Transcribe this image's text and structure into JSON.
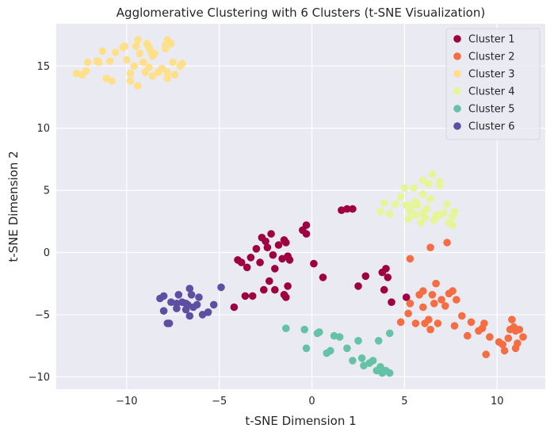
{
  "chart_data": {
    "type": "scatter",
    "title": "Agglomerative Clustering with 6 Clusters (t-SNE Visualization)",
    "xlabel": "t-SNE Dimension 1",
    "ylabel": "t-SNE Dimension 2",
    "xlim": [
      -13.8,
      12.6
    ],
    "ylim": [
      -11.0,
      18.4
    ],
    "x_ticks": [
      -10,
      -5,
      0,
      5,
      10
    ],
    "y_ticks": [
      -10,
      -5,
      0,
      5,
      10,
      15
    ],
    "x_tick_labels": [
      "−10",
      "−5",
      "0",
      "5",
      "10"
    ],
    "y_tick_labels": [
      "−10",
      "−5",
      "0",
      "5",
      "10",
      "15"
    ],
    "grid": true,
    "legend_position": "top-right",
    "background": "#eaeaf2",
    "series": [
      {
        "name": "Cluster 1",
        "color": "#9e0142",
        "points": [
          [
            -4.0,
            -0.6
          ],
          [
            -3.8,
            -0.8
          ],
          [
            -3.5,
            -1.2
          ],
          [
            -3.3,
            -0.4
          ],
          [
            -3.0,
            0.3
          ],
          [
            -2.8,
            -0.8
          ],
          [
            -2.7,
            1.2
          ],
          [
            -2.5,
            0.9
          ],
          [
            -2.4,
            0.4
          ],
          [
            -2.2,
            1.5
          ],
          [
            -2.1,
            -0.2
          ],
          [
            -2.0,
            -1.3
          ],
          [
            -1.8,
            0.6
          ],
          [
            -1.6,
            -0.5
          ],
          [
            -1.5,
            1.0
          ],
          [
            -1.3,
            -0.3
          ],
          [
            -1.4,
            0.8
          ],
          [
            -1.2,
            -0.6
          ],
          [
            -3.6,
            -3.5
          ],
          [
            -3.2,
            -3.5
          ],
          [
            -2.6,
            -3.0
          ],
          [
            -2.3,
            -2.3
          ],
          [
            -2.0,
            -3.0
          ],
          [
            -1.5,
            -3.4
          ],
          [
            -1.3,
            -2.7
          ],
          [
            -1.4,
            -3.6
          ],
          [
            -4.2,
            -4.4
          ],
          [
            -0.5,
            1.8
          ],
          [
            -0.3,
            2.2
          ],
          [
            -0.3,
            1.5
          ],
          [
            0.1,
            -0.9
          ],
          [
            0.6,
            -2.0
          ],
          [
            1.6,
            3.4
          ],
          [
            1.9,
            3.5
          ],
          [
            2.2,
            3.5
          ],
          [
            2.5,
            -2.7
          ],
          [
            2.9,
            -1.9
          ],
          [
            3.8,
            -1.6
          ],
          [
            4.0,
            -1.3
          ],
          [
            3.9,
            -3.0
          ],
          [
            4.3,
            -4.0
          ],
          [
            4.1,
            -2.0
          ],
          [
            5.1,
            -3.6
          ]
        ]
      },
      {
        "name": "Cluster 2",
        "color": "#f46d43",
        "points": [
          [
            5.3,
            -0.5
          ],
          [
            6.4,
            0.4
          ],
          [
            7.3,
            0.8
          ],
          [
            4.8,
            -5.6
          ],
          [
            5.2,
            -4.9
          ],
          [
            5.3,
            -4.1
          ],
          [
            5.6,
            -5.7
          ],
          [
            5.8,
            -3.4
          ],
          [
            6.0,
            -4.4
          ],
          [
            6.0,
            -3.1
          ],
          [
            6.1,
            -5.7
          ],
          [
            6.3,
            -5.4
          ],
          [
            6.4,
            -6.2
          ],
          [
            6.5,
            -3.4
          ],
          [
            6.6,
            -4.1
          ],
          [
            6.7,
            -2.5
          ],
          [
            6.8,
            -5.7
          ],
          [
            7.0,
            -3.8
          ],
          [
            7.2,
            -4.3
          ],
          [
            7.4,
            -3.3
          ],
          [
            7.6,
            -3.1
          ],
          [
            7.7,
            -5.9
          ],
          [
            7.8,
            -3.8
          ],
          [
            8.1,
            -5.1
          ],
          [
            8.4,
            -6.7
          ],
          [
            8.6,
            -5.6
          ],
          [
            9.0,
            -6.3
          ],
          [
            9.2,
            -6.1
          ],
          [
            9.3,
            -5.7
          ],
          [
            9.4,
            -8.2
          ],
          [
            9.6,
            -6.8
          ],
          [
            10.1,
            -7.2
          ],
          [
            10.3,
            -7.4
          ],
          [
            10.4,
            -7.9
          ],
          [
            10.6,
            -6.9
          ],
          [
            10.7,
            -6.2
          ],
          [
            10.8,
            -5.4
          ],
          [
            10.9,
            -6.0
          ],
          [
            11.0,
            -7.7
          ],
          [
            11.1,
            -7.3
          ],
          [
            11.2,
            -6.2
          ],
          [
            11.4,
            -6.8
          ],
          [
            11.0,
            -6.3
          ]
        ]
      },
      {
        "name": "Cluster 3",
        "color": "#fee08b",
        "points": [
          [
            -12.7,
            14.4
          ],
          [
            -12.4,
            14.3
          ],
          [
            -12.2,
            14.6
          ],
          [
            -12.1,
            15.3
          ],
          [
            -11.5,
            15.3
          ],
          [
            -11.3,
            16.2
          ],
          [
            -11.1,
            14.0
          ],
          [
            -10.9,
            15.4
          ],
          [
            -10.8,
            13.8
          ],
          [
            -10.6,
            16.1
          ],
          [
            -10.2,
            16.5
          ],
          [
            -10.1,
            16.6
          ],
          [
            -10.0,
            15.5
          ],
          [
            -9.8,
            14.4
          ],
          [
            -9.8,
            13.8
          ],
          [
            -9.6,
            15.0
          ],
          [
            -9.5,
            16.6
          ],
          [
            -9.4,
            17.1
          ],
          [
            -9.3,
            16.0
          ],
          [
            -9.4,
            13.4
          ],
          [
            -9.1,
            15.3
          ],
          [
            -9.0,
            14.5
          ],
          [
            -8.9,
            16.8
          ],
          [
            -8.8,
            16.5
          ],
          [
            -8.7,
            16.2
          ],
          [
            -8.6,
            15.8
          ],
          [
            -8.6,
            14.2
          ],
          [
            -8.5,
            16.0
          ],
          [
            -8.3,
            14.5
          ],
          [
            -8.1,
            14.8
          ],
          [
            -7.8,
            14.0
          ],
          [
            -7.9,
            16.4
          ],
          [
            -7.8,
            17.1
          ],
          [
            -7.6,
            16.8
          ],
          [
            -7.5,
            15.3
          ],
          [
            -7.4,
            14.3
          ],
          [
            -7.1,
            15.0
          ],
          [
            -7.0,
            15.2
          ],
          [
            -7.8,
            14.5
          ],
          [
            -8.8,
            14.9
          ],
          [
            -11.6,
            15.4
          ],
          [
            -7.9,
            16.7
          ]
        ]
      },
      {
        "name": "Cluster 4",
        "color": "#e6f598",
        "points": [
          [
            3.7,
            3.3
          ],
          [
            3.9,
            4.0
          ],
          [
            4.2,
            3.1
          ],
          [
            4.5,
            3.9
          ],
          [
            4.8,
            4.5
          ],
          [
            5.0,
            5.2
          ],
          [
            5.1,
            3.8
          ],
          [
            5.2,
            2.7
          ],
          [
            5.3,
            3.3
          ],
          [
            5.4,
            3.8
          ],
          [
            5.5,
            5.2
          ],
          [
            5.6,
            3.0
          ],
          [
            5.7,
            3.8
          ],
          [
            5.9,
            2.4
          ],
          [
            6.0,
            3.2
          ],
          [
            6.0,
            5.8
          ],
          [
            6.1,
            2.8
          ],
          [
            6.2,
            3.5
          ],
          [
            6.4,
            4.3
          ],
          [
            6.5,
            6.3
          ],
          [
            6.6,
            2.6
          ],
          [
            6.7,
            3.0
          ],
          [
            6.9,
            5.4
          ],
          [
            6.9,
            5.7
          ],
          [
            7.1,
            3.2
          ],
          [
            7.3,
            3.9
          ],
          [
            7.4,
            2.4
          ],
          [
            7.6,
            2.9
          ],
          [
            7.7,
            3.3
          ],
          [
            7.6,
            2.2
          ],
          [
            6.3,
            5.5
          ],
          [
            6.0,
            4.7
          ],
          [
            5.6,
            4.1
          ],
          [
            6.9,
            3.0
          ]
        ]
      },
      {
        "name": "Cluster 5",
        "color": "#66c2a5",
        "points": [
          [
            -1.4,
            -6.1
          ],
          [
            -0.4,
            -6.2
          ],
          [
            -0.3,
            -7.7
          ],
          [
            0.3,
            -6.5
          ],
          [
            0.4,
            -6.4
          ],
          [
            0.8,
            -8.1
          ],
          [
            1.0,
            -7.9
          ],
          [
            1.2,
            -6.7
          ],
          [
            1.5,
            -6.8
          ],
          [
            1.9,
            -7.7
          ],
          [
            2.2,
            -8.7
          ],
          [
            2.5,
            -7.1
          ],
          [
            2.7,
            -8.5
          ],
          [
            2.8,
            -9.1
          ],
          [
            3.1,
            -8.9
          ],
          [
            3.3,
            -8.7
          ],
          [
            3.5,
            -9.5
          ],
          [
            3.6,
            -7.1
          ],
          [
            3.7,
            -9.2
          ],
          [
            3.8,
            -9.7
          ],
          [
            4.0,
            -9.5
          ],
          [
            4.2,
            -9.7
          ],
          [
            4.2,
            -6.5
          ]
        ]
      },
      {
        "name": "Cluster 6",
        "color": "#5e4fa2",
        "points": [
          [
            -8.2,
            -3.7
          ],
          [
            -8.0,
            -3.5
          ],
          [
            -8.0,
            -4.7
          ],
          [
            -7.8,
            -5.7
          ],
          [
            -7.7,
            -5.7
          ],
          [
            -7.6,
            -4.0
          ],
          [
            -7.3,
            -4.5
          ],
          [
            -7.2,
            -3.4
          ],
          [
            -7.0,
            -4.0
          ],
          [
            -6.8,
            -4.1
          ],
          [
            -6.8,
            -4.6
          ],
          [
            -6.7,
            -4.2
          ],
          [
            -6.6,
            -2.9
          ],
          [
            -6.5,
            -3.4
          ],
          [
            -6.4,
            -4.4
          ],
          [
            -6.6,
            -5.1
          ],
          [
            -6.2,
            -4.2
          ],
          [
            -6.1,
            -3.6
          ],
          [
            -5.9,
            -5.0
          ],
          [
            -5.6,
            -4.8
          ],
          [
            -5.3,
            -4.2
          ],
          [
            -4.9,
            -2.8
          ],
          [
            -7.3,
            -4.1
          ]
        ]
      }
    ]
  }
}
